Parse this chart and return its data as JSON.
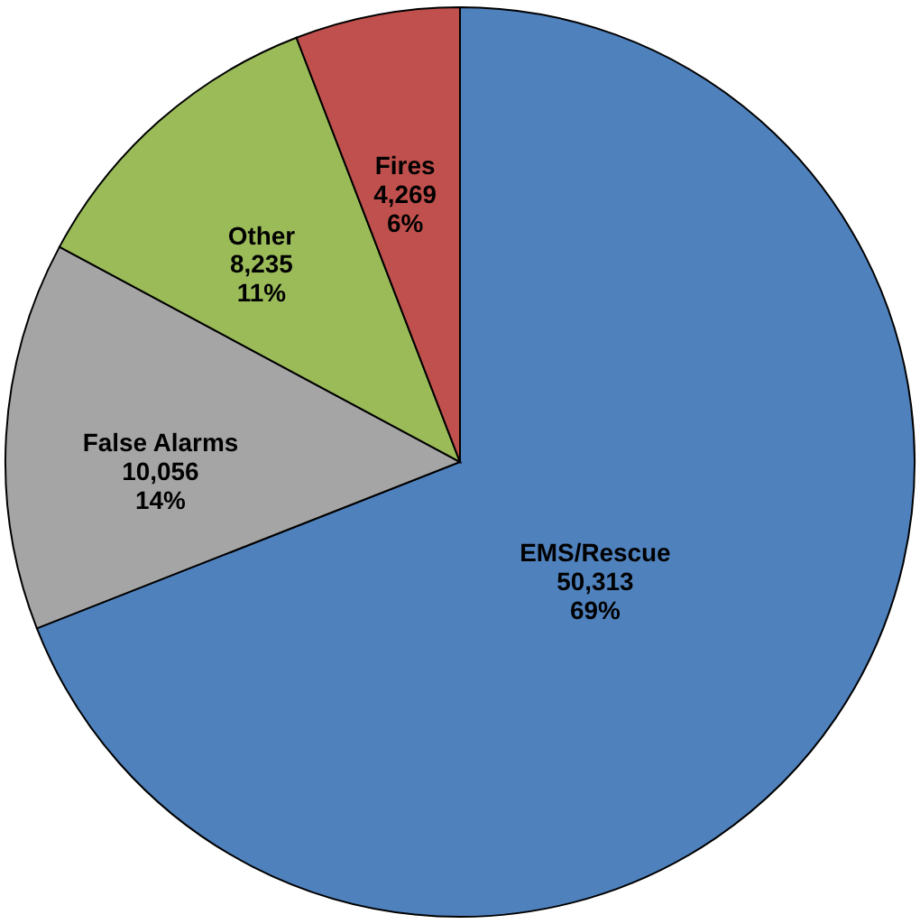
{
  "chart_data": {
    "type": "pie",
    "categories": [
      "EMS/Rescue",
      "False Alarms",
      "Other",
      "Fires"
    ],
    "values": [
      50313,
      10056,
      8235,
      4269
    ],
    "value_labels": [
      "50,313\n69%",
      "10,056\n14%",
      "8,235\n11%",
      "4,269\n6%"
    ],
    "colors": [
      "#4f81bd",
      "#a5a5a5",
      "#9bbb59",
      "#c0504d"
    ]
  }
}
